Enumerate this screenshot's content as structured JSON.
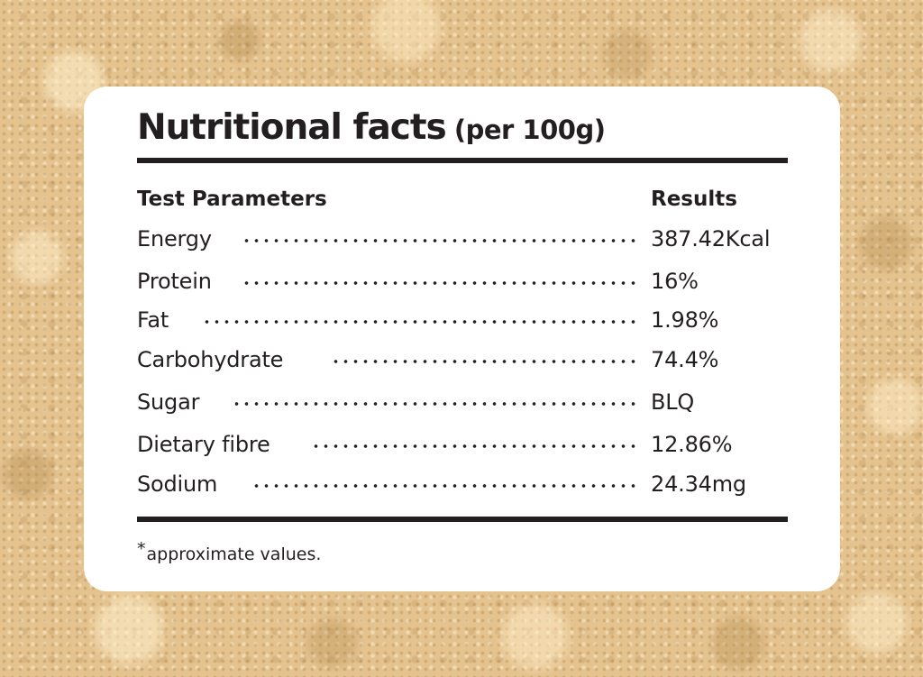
{
  "title": {
    "main": "Nutritional facts",
    "sub": "(per 100g)"
  },
  "table": {
    "header_param": "Test Parameters",
    "header_result": "Results",
    "rows": [
      {
        "param": "Energy",
        "result": "387.42Kcal"
      },
      {
        "param": "Protein",
        "result": "16%"
      },
      {
        "param": "Fat",
        "result": "1.98%"
      },
      {
        "param": "Carbohydrate",
        "result": "74.4%"
      },
      {
        "param": "Sugar",
        "result": "BLQ"
      },
      {
        "param": "Dietary fibre",
        "result": "12.86%"
      },
      {
        "param": "Sodium",
        "result": "24.34mg"
      }
    ]
  },
  "footnote": {
    "star": "*",
    "text": "approximate values."
  },
  "colors": {
    "text": "#231f20",
    "card": "#ffffff",
    "background": "#e5c38f"
  }
}
